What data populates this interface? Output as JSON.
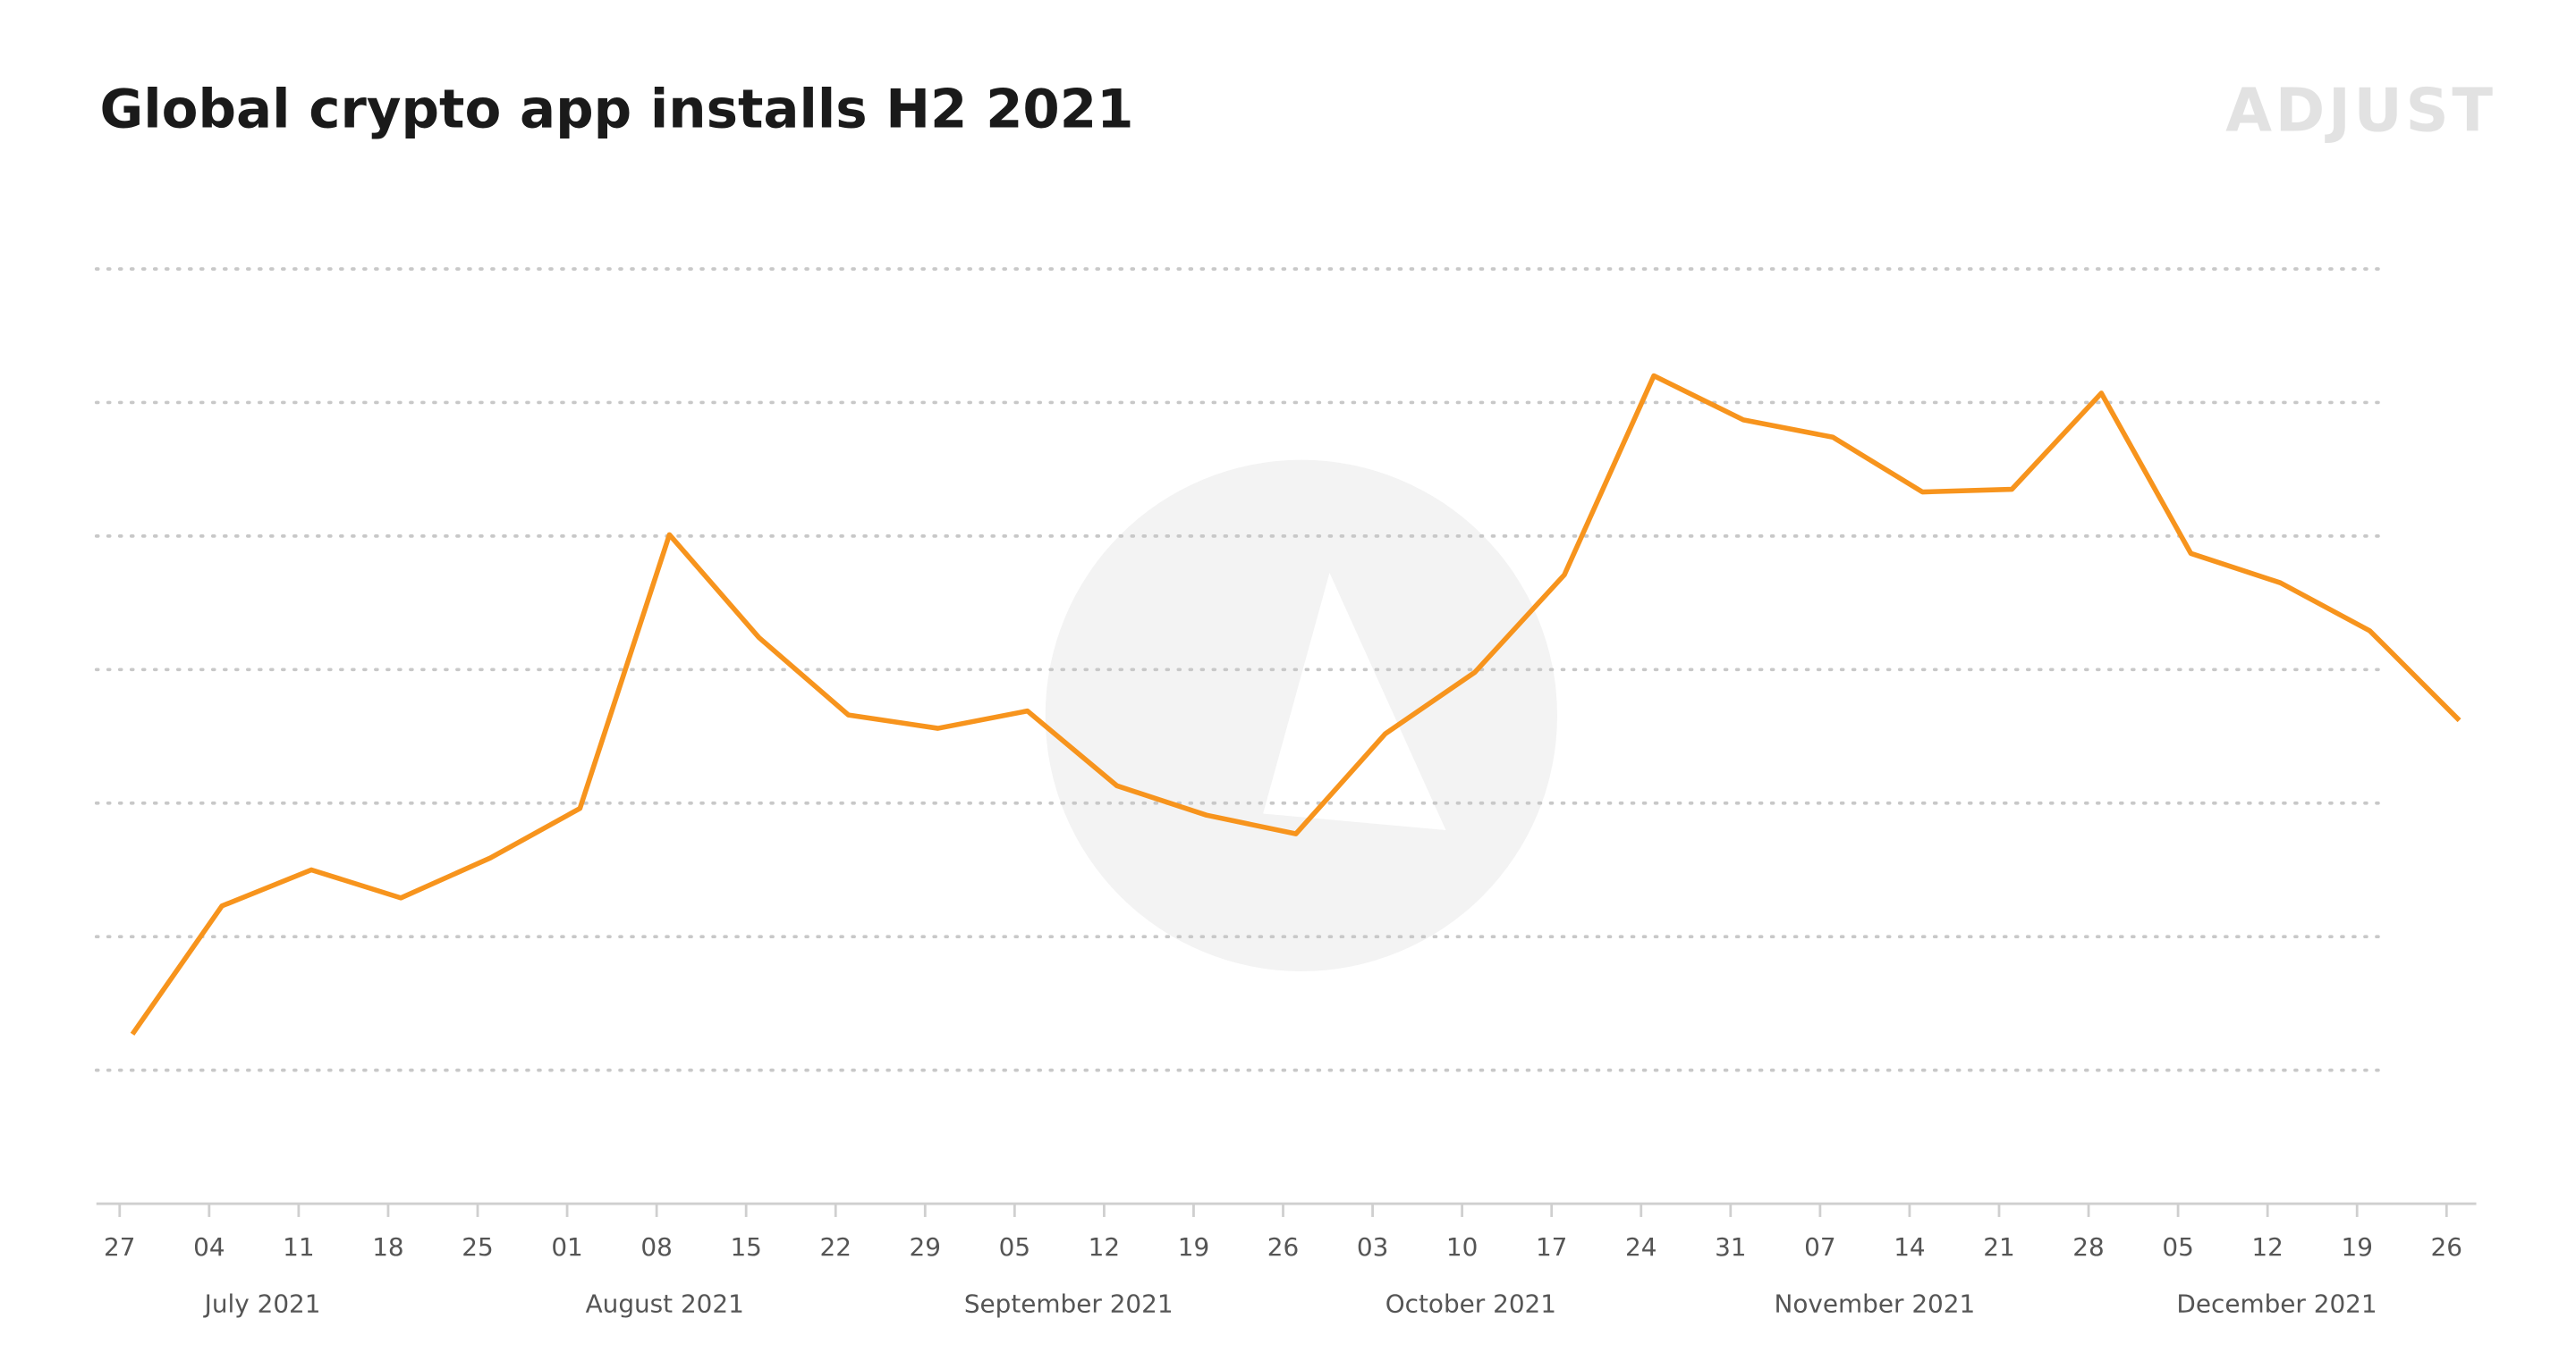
{
  "chart_data": {
    "type": "line",
    "title": "Global crypto app installs H2 2021",
    "logo": "ADJUST",
    "x": [
      1,
      8,
      15,
      22,
      29,
      36,
      43,
      50,
      57,
      64,
      71,
      78,
      85,
      92,
      99,
      106,
      113,
      120,
      127,
      134,
      141,
      148,
      155,
      162,
      169,
      176,
      183
    ],
    "series": [
      {
        "color": "#f7941d",
        "values": [
          1.27,
          2.23,
          2.5,
          2.29,
          2.59,
          2.96,
          5.01,
          4.24,
          3.66,
          3.56,
          3.69,
          3.13,
          2.91,
          2.77,
          3.52,
          3.98,
          4.71,
          6.2,
          5.87,
          5.74,
          5.33,
          5.35,
          6.07,
          4.87,
          4.65,
          4.29,
          3.62
        ]
      }
    ],
    "xlim": [
      -2,
      184
    ],
    "xticks": [
      {
        "value": 0,
        "label": "27"
      },
      {
        "value": 7,
        "label": "04"
      },
      {
        "value": 14,
        "label": "11"
      },
      {
        "value": 21,
        "label": "18"
      },
      {
        "value": 28,
        "label": "25"
      },
      {
        "value": 35,
        "label": "01"
      },
      {
        "value": 42,
        "label": "08"
      },
      {
        "value": 49,
        "label": "15"
      },
      {
        "value": 56,
        "label": "22"
      },
      {
        "value": 63,
        "label": "29"
      },
      {
        "value": 70,
        "label": "05"
      },
      {
        "value": 77,
        "label": "12"
      },
      {
        "value": 84,
        "label": "19"
      },
      {
        "value": 91,
        "label": "26"
      },
      {
        "value": 98,
        "label": "03"
      },
      {
        "value": 105,
        "label": "10"
      },
      {
        "value": 112,
        "label": "17"
      },
      {
        "value": 119,
        "label": "24"
      },
      {
        "value": 126,
        "label": "31"
      },
      {
        "value": 133,
        "label": "07"
      },
      {
        "value": 140,
        "label": "14"
      },
      {
        "value": 147,
        "label": "21"
      },
      {
        "value": 154,
        "label": "28"
      },
      {
        "value": 161,
        "label": "05"
      },
      {
        "value": 168,
        "label": "12"
      },
      {
        "value": 175,
        "label": "19"
      },
      {
        "value": 182,
        "label": "26"
      }
    ],
    "month_labels": [
      "July 2021",
      "August 2021",
      "September 2021",
      "October 2021",
      "November 2021",
      "December 2021"
    ],
    "ylim": [
      0,
      7
    ],
    "yticks": [
      1,
      2,
      3,
      4,
      5,
      6,
      7
    ],
    "grid": true
  }
}
